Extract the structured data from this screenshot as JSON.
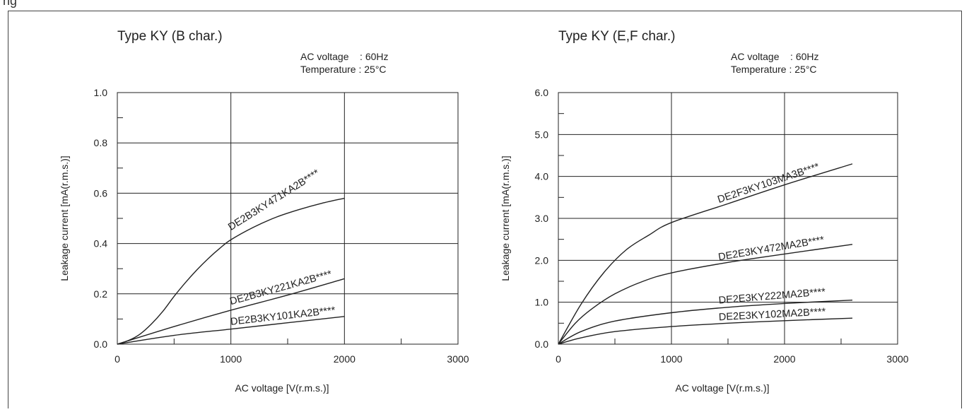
{
  "header_fragment": "ng",
  "chart_data": [
    {
      "type": "line",
      "title": "Type KY (B char.)",
      "conditions": [
        "AC voltage    : 60Hz",
        "Temperature : 25°C"
      ],
      "xlabel": "AC voltage [V(r.m.s.)]",
      "ylabel": "Leakage current [mA(r.m.s.)]",
      "xlim": [
        0,
        3000
      ],
      "ylim": [
        0,
        1.0
      ],
      "xticks": [
        0,
        1000,
        2000,
        3000
      ],
      "xtick_labels": [
        "0",
        "1000",
        "2000",
        "3000"
      ],
      "yticks": [
        0,
        0.2,
        0.4,
        0.6,
        0.8,
        1.0
      ],
      "ytick_labels": [
        "0.0",
        "0.2",
        "0.4",
        "0.6",
        "0.8",
        "1.0"
      ],
      "grid": true,
      "series": [
        {
          "name": "DE2B3KY471KA2B****",
          "x": [
            0,
            100,
            200,
            300,
            400,
            500,
            600,
            700,
            800,
            900,
            1000,
            1200,
            1400,
            1600,
            1800,
            2000
          ],
          "y": [
            0,
            0.015,
            0.04,
            0.08,
            0.13,
            0.19,
            0.245,
            0.295,
            0.34,
            0.38,
            0.415,
            0.465,
            0.505,
            0.535,
            0.56,
            0.58
          ]
        },
        {
          "name": "DE2B3KY221KA2B****",
          "x": [
            0,
            500,
            1000,
            1500,
            2000
          ],
          "y": [
            0,
            0.07,
            0.135,
            0.195,
            0.26
          ]
        },
        {
          "name": "DE2B3KY101KA2B****",
          "x": [
            0,
            500,
            1000,
            1500,
            2000
          ],
          "y": [
            0,
            0.035,
            0.06,
            0.085,
            0.11
          ]
        }
      ]
    },
    {
      "type": "line",
      "title": "Type KY (E,F char.)",
      "conditions": [
        "AC voltage    : 60Hz",
        "Temperature : 25°C"
      ],
      "xlabel": "AC voltage [V(r.m.s.)]",
      "ylabel": "Leakage current [mA(r.m.s.)]",
      "xlim": [
        0,
        3000
      ],
      "ylim": [
        0,
        6.0
      ],
      "xticks": [
        0,
        1000,
        2000,
        3000
      ],
      "xtick_labels": [
        "0",
        "1000",
        "2000",
        "3000"
      ],
      "yticks": [
        0,
        1,
        2,
        3,
        4,
        5,
        6
      ],
      "ytick_labels": [
        "0.0",
        "1.0",
        "2.0",
        "3.0",
        "4.0",
        "5.0",
        "6.0"
      ],
      "grid": true,
      "series": [
        {
          "name": "DE2F3KY103MA3B****",
          "x": [
            0,
            200,
            400,
            600,
            800,
            1000,
            1500,
            2000,
            2600
          ],
          "y": [
            0,
            0.95,
            1.7,
            2.25,
            2.6,
            2.9,
            3.35,
            3.8,
            4.3
          ]
        },
        {
          "name": "DE2E3KY472MA2B****",
          "x": [
            0,
            150,
            300,
            500,
            750,
            1000,
            1500,
            2000,
            2600
          ],
          "y": [
            0,
            0.5,
            0.85,
            1.2,
            1.5,
            1.7,
            1.95,
            2.15,
            2.38
          ]
        },
        {
          "name": "DE2E3KY222MA2B****",
          "x": [
            0,
            200,
            500,
            1000,
            1500,
            2000,
            2600
          ],
          "y": [
            0,
            0.3,
            0.55,
            0.75,
            0.88,
            0.97,
            1.05
          ]
        },
        {
          "name": "DE2E3KY102MA2B****",
          "x": [
            0,
            200,
            500,
            1000,
            1500,
            2000,
            2600
          ],
          "y": [
            0,
            0.15,
            0.3,
            0.42,
            0.5,
            0.56,
            0.62
          ]
        }
      ]
    }
  ]
}
